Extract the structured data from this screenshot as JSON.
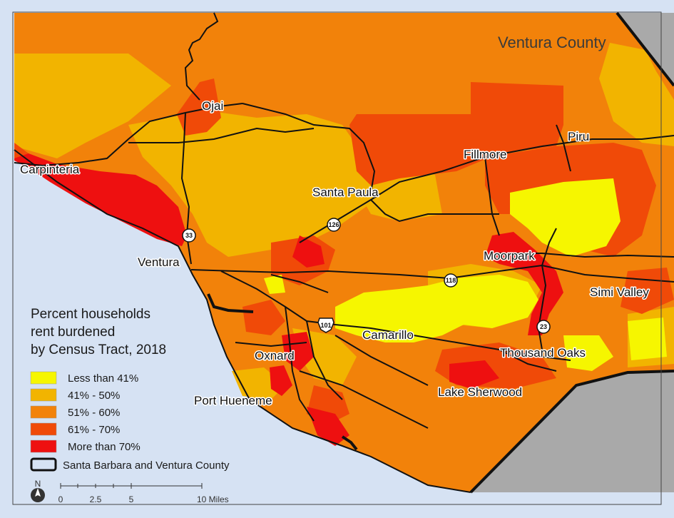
{
  "colors": {
    "ocean": "#d6e2f3",
    "outside_county": "#a9a9a9",
    "less_than_41": "#f6f600",
    "p41_50": "#f2b400",
    "p51_60": "#f2820a",
    "p61_70": "#f04a08",
    "more_than_70": "#ee1010",
    "roads": "#111111"
  },
  "county_label": "Ventura County",
  "places": {
    "ojai": "Ojai",
    "carpinteria": "Carpinteria",
    "santa_paula": "Santa Paula",
    "fillmore": "Fillmore",
    "piru": "Piru",
    "ventura": "Ventura",
    "moorpark": "Moorpark",
    "simi_valley": "Simi Valley",
    "camarillo": "Camarillo",
    "thousand_oaks": "Thousand Oaks",
    "oxnard": "Oxnard",
    "lake_sherwood": "Lake Sherwood",
    "port_hueneme": "Port Hueneme"
  },
  "highways": {
    "h33": "33",
    "h126": "126",
    "h118": "118",
    "h101": "101",
    "h23": "23"
  },
  "legend": {
    "title_line1": "Percent households",
    "title_line2": "rent burdened",
    "title_line3": "by Census Tract, 2018",
    "items": [
      {
        "label": "Less than 41%"
      },
      {
        "label": "41% - 50%"
      },
      {
        "label": "51% - 60%"
      },
      {
        "label": "61% - 70%"
      },
      {
        "label": "More than 70%"
      }
    ],
    "boundary_label": "Santa Barbara and Ventura County"
  },
  "north_label": "N",
  "scale": {
    "ticks": [
      "0",
      "2.5",
      "5",
      "10 Miles"
    ]
  }
}
